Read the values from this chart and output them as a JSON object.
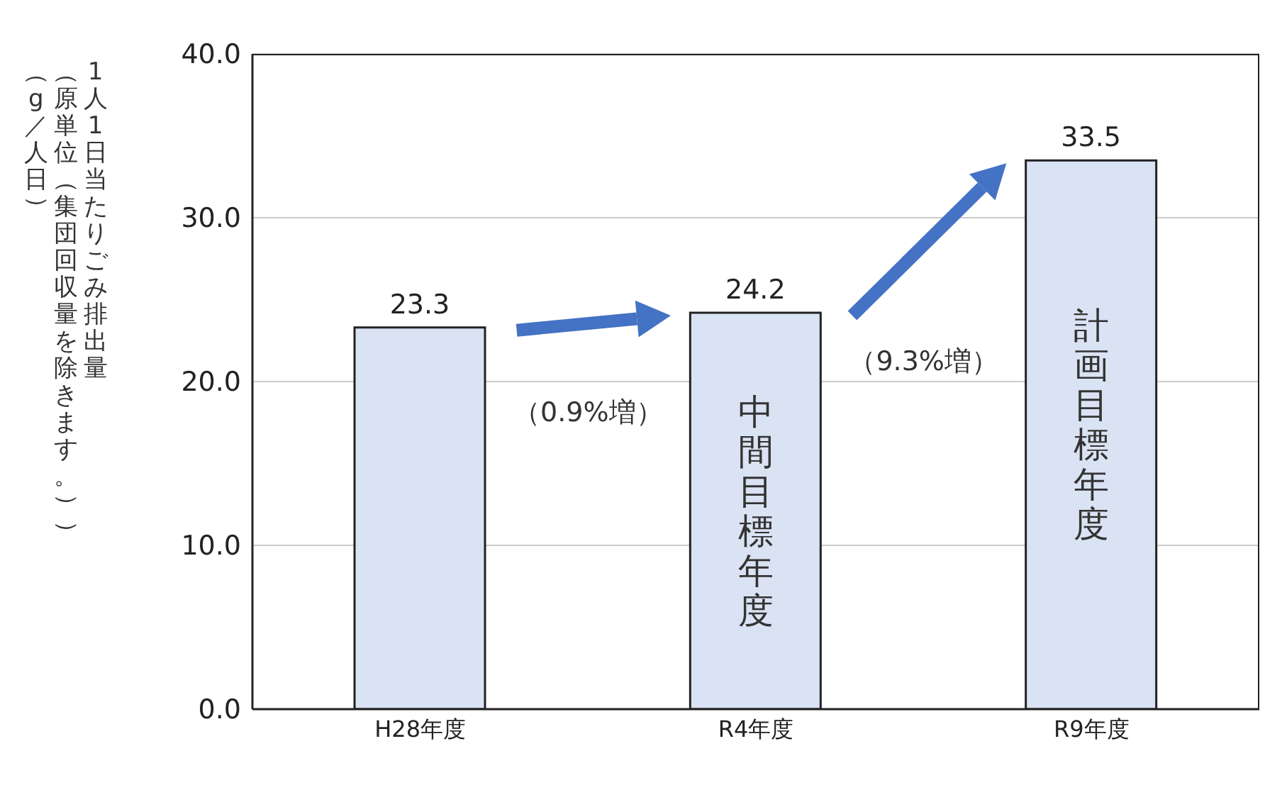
{
  "chart_data": {
    "type": "bar",
    "ylabel": "1人1日当たりごみ排出量",
    "categories": [
      "H28年度",
      "R4年度",
      "R9年度"
    ],
    "values": [
      23.3,
      24.2,
      33.5
    ],
    "color": "#dae3f3",
    "ylim": [
      0,
      40
    ],
    "yticks": [
      {
        "value": 0,
        "label": "0.0"
      },
      {
        "value": 10,
        "label": "10.0"
      },
      {
        "value": 20,
        "label": "20.0"
      },
      {
        "value": 30,
        "label": "30.0"
      },
      {
        "value": 40,
        "label": "40.0"
      }
    ],
    "grid": "y",
    "data_labels": true,
    "annotations": [
      "（0.9%増）",
      "（9.3%増）",
      "中間目標年度",
      "計画目標年度",
      "（原単位（集団回収量を除きます。））",
      "（g／人日）"
    ]
  }
}
